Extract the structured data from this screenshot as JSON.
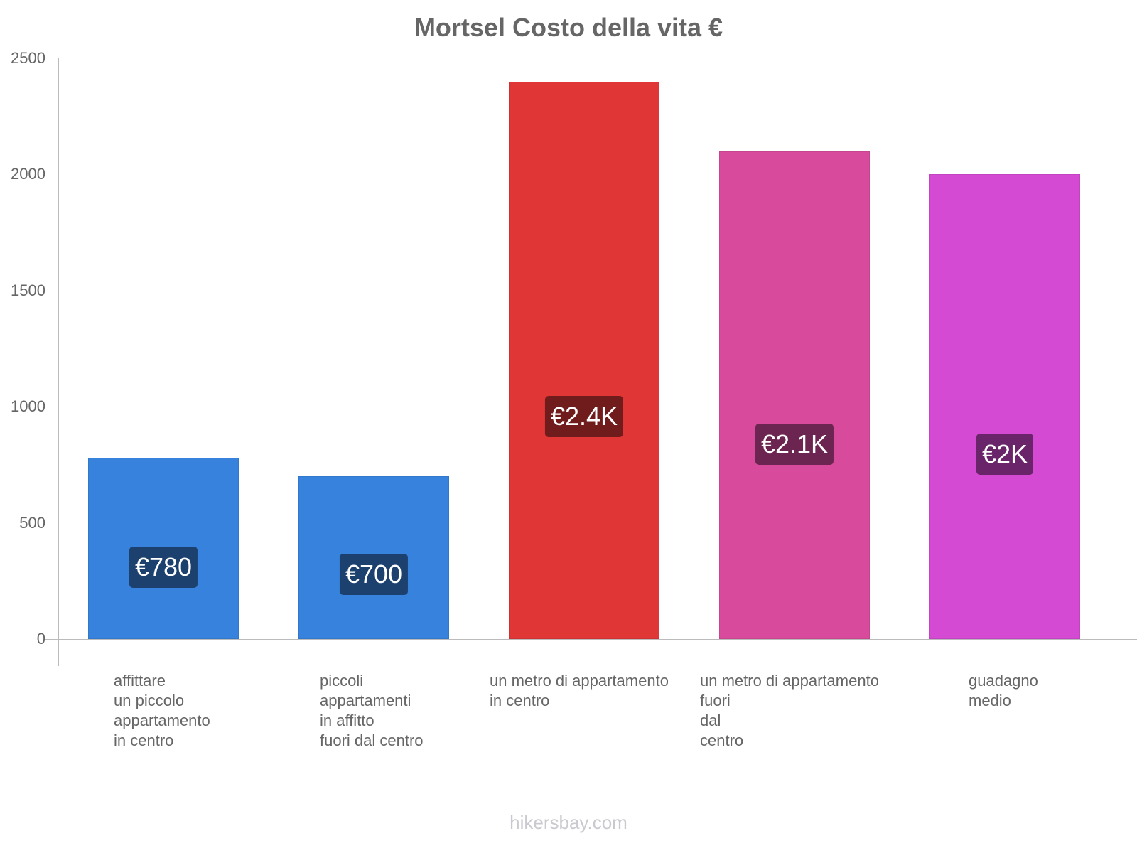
{
  "chart_data": {
    "type": "bar",
    "title": "Mortsel Costo della vita €",
    "xlabel": "",
    "ylabel": "",
    "ylim": [
      0,
      2500
    ],
    "yticks": [
      0,
      500,
      1000,
      1500,
      2000,
      2500
    ],
    "grid": false,
    "legend": null,
    "categories": [
      "affittare un piccolo appartamento in centro",
      "piccoli appartamenti in affitto fuori dal centro",
      "un metro di appartamento in centro",
      "un metro di appartamento fuori dal centro",
      "guadagno medio"
    ],
    "values": [
      780,
      700,
      2400,
      2100,
      2000
    ],
    "data_labels": [
      "€780",
      "€700",
      "€2.4K",
      "€2.1K",
      "€2K"
    ],
    "colors": [
      "#3682dc",
      "#3682dc",
      "#e03636",
      "#d84a9c",
      "#d44ad2"
    ],
    "label_colors": [
      "#1d416e",
      "#1d416e",
      "#711c1c",
      "#6c2450",
      "#6a2469"
    ]
  },
  "title": "Mortsel Costo della vita €",
  "y_ticks": [
    "0",
    "500",
    "1000",
    "1500",
    "2000",
    "2500"
  ],
  "x_labels": [
    "affittare\nun piccolo\nappartamento\nin centro",
    "piccoli\nappartamenti\nin affitto\nfuori dal centro",
    "un metro di appartamento\nin centro",
    "un metro di appartamento\nfuori\ndal\ncentro",
    "guadagno\nmedio"
  ],
  "watermark": "hikersbay.com"
}
